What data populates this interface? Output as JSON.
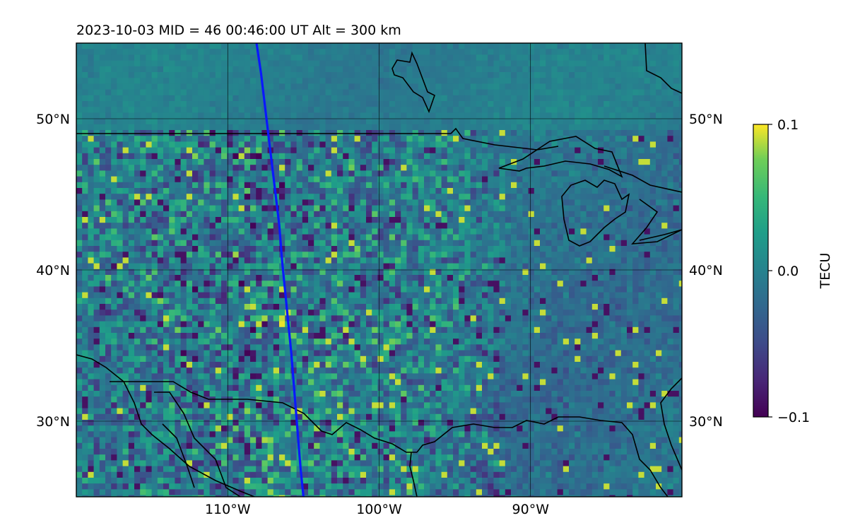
{
  "header": {
    "title": "2023-10-03  MID =  46    00:46:00  UT  Alt = 300 km"
  },
  "map": {
    "lon_range": [
      -120,
      -80
    ],
    "lat_range": [
      25,
      55
    ],
    "lon_ticks": [
      {
        "value": -110,
        "label": "110°W"
      },
      {
        "value": -100,
        "label": "100°W"
      },
      {
        "value": -90,
        "label": "90°W"
      }
    ],
    "lat_ticks": [
      {
        "value": 30,
        "label": "30°N"
      },
      {
        "value": 40,
        "label": "40°N"
      },
      {
        "value": 50,
        "label": "50°N"
      }
    ],
    "gridlines": true,
    "track_color": "#0a18ff",
    "track_points": [
      [
        -108.1,
        55
      ],
      [
        -107.8,
        53
      ],
      [
        -107.5,
        50.5
      ],
      [
        -107.2,
        48
      ],
      [
        -106.9,
        45.5
      ],
      [
        -106.6,
        43
      ],
      [
        -106.4,
        40.5
      ],
      [
        -106.2,
        38.5
      ],
      [
        -106.0,
        36.5
      ],
      [
        -105.8,
        34.5
      ],
      [
        -105.6,
        32
      ],
      [
        -105.4,
        29.5
      ],
      [
        -105.2,
        27
      ],
      [
        -105.0,
        25
      ]
    ]
  },
  "colorbar": {
    "label": "TECU",
    "min": -0.1,
    "max": 0.1,
    "ticks": [
      {
        "value": 0.1,
        "label": "0.1"
      },
      {
        "value": 0.0,
        "label": "0.0"
      },
      {
        "value": -0.1,
        "label": "−0.1"
      }
    ],
    "colormap": "viridis"
  }
}
